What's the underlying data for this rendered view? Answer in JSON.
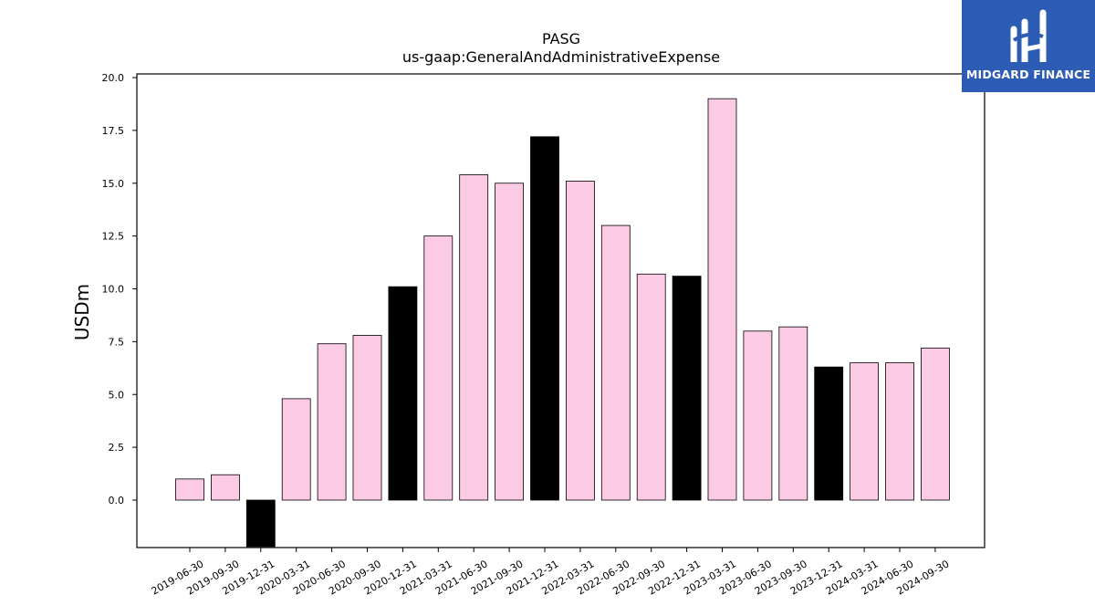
{
  "chart_data": {
    "type": "bar",
    "title": "PASG",
    "subtitle": "us-gaap:GeneralAndAdministrativeExpense",
    "ylabel": "USDm",
    "xlabel": "",
    "ylim": [
      -2.2,
      20.2
    ],
    "yticks": [
      "0.0",
      "2.5",
      "5.0",
      "7.5",
      "10.0",
      "12.5",
      "15.0",
      "17.5",
      "20.0"
    ],
    "grid": false,
    "categories": [
      "2019-06-30",
      "2019-09-30",
      "2019-12-31",
      "2020-03-31",
      "2020-06-30",
      "2020-09-30",
      "2020-12-31",
      "2021-03-31",
      "2021-06-30",
      "2021-09-30",
      "2021-12-31",
      "2022-03-31",
      "2022-06-30",
      "2022-09-30",
      "2022-12-31",
      "2023-03-31",
      "2023-06-30",
      "2023-09-30",
      "2023-12-31",
      "2024-03-31",
      "2024-06-30",
      "2024-09-30"
    ],
    "values": [
      1.0,
      1.2,
      -2.2,
      4.8,
      7.4,
      7.8,
      10.1,
      12.5,
      15.4,
      15.0,
      17.2,
      15.1,
      13.0,
      10.7,
      10.6,
      19.0,
      8.0,
      8.2,
      6.3,
      6.5,
      6.5,
      7.2
    ],
    "highlight": [
      false,
      false,
      true,
      false,
      false,
      false,
      true,
      false,
      false,
      false,
      true,
      false,
      false,
      false,
      true,
      false,
      false,
      false,
      true,
      false,
      false,
      false
    ],
    "colors": {
      "bar": "#fbcae4",
      "highlight": "#000000",
      "edge": "#000000"
    }
  },
  "logo": {
    "name": "MIDGARD FINANCE",
    "background": "#2d5cb4"
  }
}
